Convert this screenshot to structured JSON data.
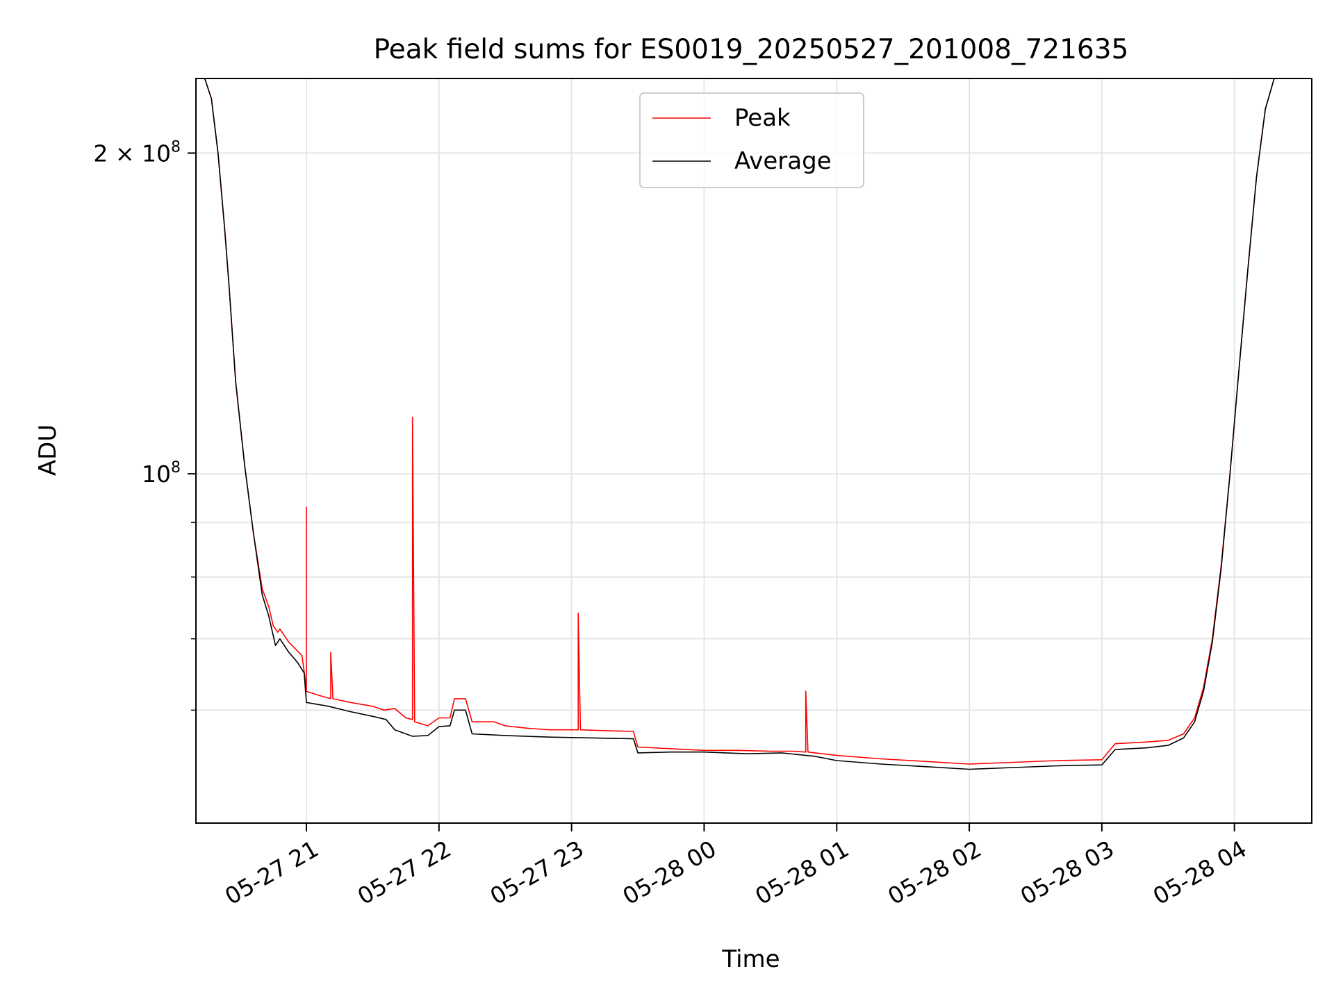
{
  "chart_data": {
    "type": "line",
    "title": "Peak field sums for ES0019_20250527_201008_721635",
    "xlabel": "Time",
    "ylabel": "ADU",
    "y_scale": "log",
    "ylim": [
      47000000,
      235000000
    ],
    "xlim": [
      "2025-05-27 20:10",
      "2025-05-28 04:35"
    ],
    "grid": true,
    "legend_position": "top-center",
    "x_ticks": [
      {
        "value": "2025-05-27 21:00",
        "label": "05-27 21"
      },
      {
        "value": "2025-05-27 22:00",
        "label": "05-27 22"
      },
      {
        "value": "2025-05-27 23:00",
        "label": "05-27 23"
      },
      {
        "value": "2025-05-28 00:00",
        "label": "05-28 00"
      },
      {
        "value": "2025-05-28 01:00",
        "label": "05-28 01"
      },
      {
        "value": "2025-05-28 02:00",
        "label": "05-28 02"
      },
      {
        "value": "2025-05-28 03:00",
        "label": "05-28 03"
      },
      {
        "value": "2025-05-28 04:00",
        "label": "05-28 04"
      }
    ],
    "y_ticks": [
      {
        "value": 200000000,
        "label": "2 × 10",
        "sup": "8"
      },
      {
        "value": 100000000,
        "label": "10",
        "sup": "8"
      }
    ],
    "y_minor_ticks": [
      60000000,
      70000000,
      80000000,
      90000000
    ],
    "series": [
      {
        "name": "Peak",
        "color": "#ff0000",
        "points": [
          [
            "2025-05-27 20:10",
            235000000
          ],
          [
            "2025-05-27 20:14",
            235000000
          ],
          [
            "2025-05-27 20:17",
            225000000
          ],
          [
            "2025-05-27 20:20",
            200000000
          ],
          [
            "2025-05-27 20:23",
            170000000
          ],
          [
            "2025-05-27 20:25",
            150000000
          ],
          [
            "2025-05-27 20:28",
            122000000
          ],
          [
            "2025-05-27 20:32",
            102000000
          ],
          [
            "2025-05-27 20:36",
            88000000
          ],
          [
            "2025-05-27 20:40",
            78000000
          ],
          [
            "2025-05-27 20:43",
            75000000
          ],
          [
            "2025-05-27 20:45",
            72000000
          ],
          [
            "2025-05-27 20:47",
            71000000
          ],
          [
            "2025-05-27 20:48",
            71500000
          ],
          [
            "2025-05-27 20:50",
            70500000
          ],
          [
            "2025-05-27 20:52",
            69500000
          ],
          [
            "2025-05-27 20:55",
            68500000
          ],
          [
            "2025-05-27 20:58",
            67500000
          ],
          [
            "2025-05-27 21:00",
            63000000
          ],
          [
            "2025-05-27 21:00",
            93000000
          ],
          [
            "2025-05-27 21:00",
            62500000
          ],
          [
            "2025-05-27 21:05",
            62000000
          ],
          [
            "2025-05-27 21:11",
            61500000
          ],
          [
            "2025-05-27 21:11",
            68000000
          ],
          [
            "2025-05-27 21:12",
            61500000
          ],
          [
            "2025-05-27 21:20",
            61000000
          ],
          [
            "2025-05-27 21:30",
            60500000
          ],
          [
            "2025-05-27 21:35",
            60000000
          ],
          [
            "2025-05-27 21:40",
            60200000
          ],
          [
            "2025-05-27 21:45",
            59000000
          ],
          [
            "2025-05-27 21:48",
            58800000
          ],
          [
            "2025-05-27 21:48",
            113000000
          ],
          [
            "2025-05-27 21:49",
            58500000
          ],
          [
            "2025-05-27 21:55",
            58000000
          ],
          [
            "2025-05-27 22:00",
            59000000
          ],
          [
            "2025-05-27 22:05",
            59000000
          ],
          [
            "2025-05-27 22:07",
            61500000
          ],
          [
            "2025-05-27 22:12",
            61500000
          ],
          [
            "2025-05-27 22:15",
            58500000
          ],
          [
            "2025-05-27 22:25",
            58500000
          ],
          [
            "2025-05-27 22:30",
            58000000
          ],
          [
            "2025-05-27 22:40",
            57700000
          ],
          [
            "2025-05-27 22:50",
            57500000
          ],
          [
            "2025-05-27 23:02",
            57500000
          ],
          [
            "2025-05-27 23:03",
            57500000
          ],
          [
            "2025-05-27 23:03",
            74000000
          ],
          [
            "2025-05-27 23:04",
            57500000
          ],
          [
            "2025-05-27 23:15",
            57400000
          ],
          [
            "2025-05-27 23:28",
            57300000
          ],
          [
            "2025-05-27 23:30",
            55400000
          ],
          [
            "2025-05-27 23:45",
            55200000
          ],
          [
            "2025-05-28 00:00",
            55000000
          ],
          [
            "2025-05-28 00:15",
            55000000
          ],
          [
            "2025-05-28 00:30",
            54900000
          ],
          [
            "2025-05-28 00:40",
            54900000
          ],
          [
            "2025-05-28 00:46",
            54800000
          ],
          [
            "2025-05-28 00:46",
            62500000
          ],
          [
            "2025-05-28 00:47",
            54800000
          ],
          [
            "2025-05-28 01:00",
            54400000
          ],
          [
            "2025-05-28 01:20",
            54000000
          ],
          [
            "2025-05-28 01:40",
            53700000
          ],
          [
            "2025-05-28 02:00",
            53400000
          ],
          [
            "2025-05-28 02:20",
            53600000
          ],
          [
            "2025-05-28 02:40",
            53800000
          ],
          [
            "2025-05-28 03:00",
            53900000
          ],
          [
            "2025-05-28 03:06",
            55800000
          ],
          [
            "2025-05-28 03:20",
            56000000
          ],
          [
            "2025-05-28 03:30",
            56200000
          ],
          [
            "2025-05-28 03:37",
            57000000
          ],
          [
            "2025-05-28 03:42",
            59000000
          ],
          [
            "2025-05-28 03:46",
            63000000
          ],
          [
            "2025-05-28 03:50",
            70000000
          ],
          [
            "2025-05-28 03:54",
            82000000
          ],
          [
            "2025-05-28 03:58",
            100000000
          ],
          [
            "2025-05-28 04:02",
            125000000
          ],
          [
            "2025-05-28 04:06",
            155000000
          ],
          [
            "2025-05-28 04:10",
            190000000
          ],
          [
            "2025-05-28 04:14",
            220000000
          ],
          [
            "2025-05-28 04:18",
            235000000
          ],
          [
            "2025-05-28 04:35",
            235000000
          ]
        ]
      },
      {
        "name": "Average",
        "color": "#000000",
        "points": [
          [
            "2025-05-27 20:10",
            235000000
          ],
          [
            "2025-05-27 20:14",
            235000000
          ],
          [
            "2025-05-27 20:17",
            225000000
          ],
          [
            "2025-05-27 20:20",
            200000000
          ],
          [
            "2025-05-27 20:23",
            170000000
          ],
          [
            "2025-05-27 20:25",
            150000000
          ],
          [
            "2025-05-27 20:28",
            122000000
          ],
          [
            "2025-05-27 20:32",
            102000000
          ],
          [
            "2025-05-27 20:36",
            88000000
          ],
          [
            "2025-05-27 20:40",
            77000000
          ],
          [
            "2025-05-27 20:43",
            73500000
          ],
          [
            "2025-05-27 20:46",
            69000000
          ],
          [
            "2025-05-27 20:48",
            70000000
          ],
          [
            "2025-05-27 20:52",
            68000000
          ],
          [
            "2025-05-27 20:56",
            66500000
          ],
          [
            "2025-05-27 20:59",
            65000000
          ],
          [
            "2025-05-27 21:00",
            61000000
          ],
          [
            "2025-05-27 21:10",
            60500000
          ],
          [
            "2025-05-27 21:20",
            59800000
          ],
          [
            "2025-05-27 21:30",
            59200000
          ],
          [
            "2025-05-27 21:36",
            58800000
          ],
          [
            "2025-05-27 21:40",
            57500000
          ],
          [
            "2025-05-27 21:48",
            56700000
          ],
          [
            "2025-05-27 21:55",
            56800000
          ],
          [
            "2025-05-27 22:00",
            57900000
          ],
          [
            "2025-05-27 22:05",
            58000000
          ],
          [
            "2025-05-27 22:07",
            60000000
          ],
          [
            "2025-05-27 22:12",
            60000000
          ],
          [
            "2025-05-27 22:15",
            57000000
          ],
          [
            "2025-05-27 22:30",
            56800000
          ],
          [
            "2025-05-27 22:50",
            56600000
          ],
          [
            "2025-05-27 23:10",
            56500000
          ],
          [
            "2025-05-27 23:28",
            56400000
          ],
          [
            "2025-05-27 23:30",
            54700000
          ],
          [
            "2025-05-27 23:45",
            54800000
          ],
          [
            "2025-05-28 00:00",
            54800000
          ],
          [
            "2025-05-28 00:20",
            54600000
          ],
          [
            "2025-05-28 00:35",
            54700000
          ],
          [
            "2025-05-28 00:50",
            54300000
          ],
          [
            "2025-05-28 01:00",
            53800000
          ],
          [
            "2025-05-28 01:20",
            53400000
          ],
          [
            "2025-05-28 01:40",
            53100000
          ],
          [
            "2025-05-28 02:00",
            52800000
          ],
          [
            "2025-05-28 02:20",
            53000000
          ],
          [
            "2025-05-28 02:40",
            53200000
          ],
          [
            "2025-05-28 03:00",
            53300000
          ],
          [
            "2025-05-28 03:06",
            55100000
          ],
          [
            "2025-05-28 03:20",
            55300000
          ],
          [
            "2025-05-28 03:30",
            55600000
          ],
          [
            "2025-05-28 03:37",
            56500000
          ],
          [
            "2025-05-28 03:42",
            58500000
          ],
          [
            "2025-05-28 03:46",
            62500000
          ],
          [
            "2025-05-28 03:50",
            69500000
          ],
          [
            "2025-05-28 03:54",
            81500000
          ],
          [
            "2025-05-28 03:58",
            100000000
          ],
          [
            "2025-05-28 04:02",
            125000000
          ],
          [
            "2025-05-28 04:06",
            155000000
          ],
          [
            "2025-05-28 04:10",
            190000000
          ],
          [
            "2025-05-28 04:14",
            220000000
          ],
          [
            "2025-05-28 04:18",
            235000000
          ],
          [
            "2025-05-28 04:35",
            235000000
          ]
        ]
      }
    ]
  }
}
